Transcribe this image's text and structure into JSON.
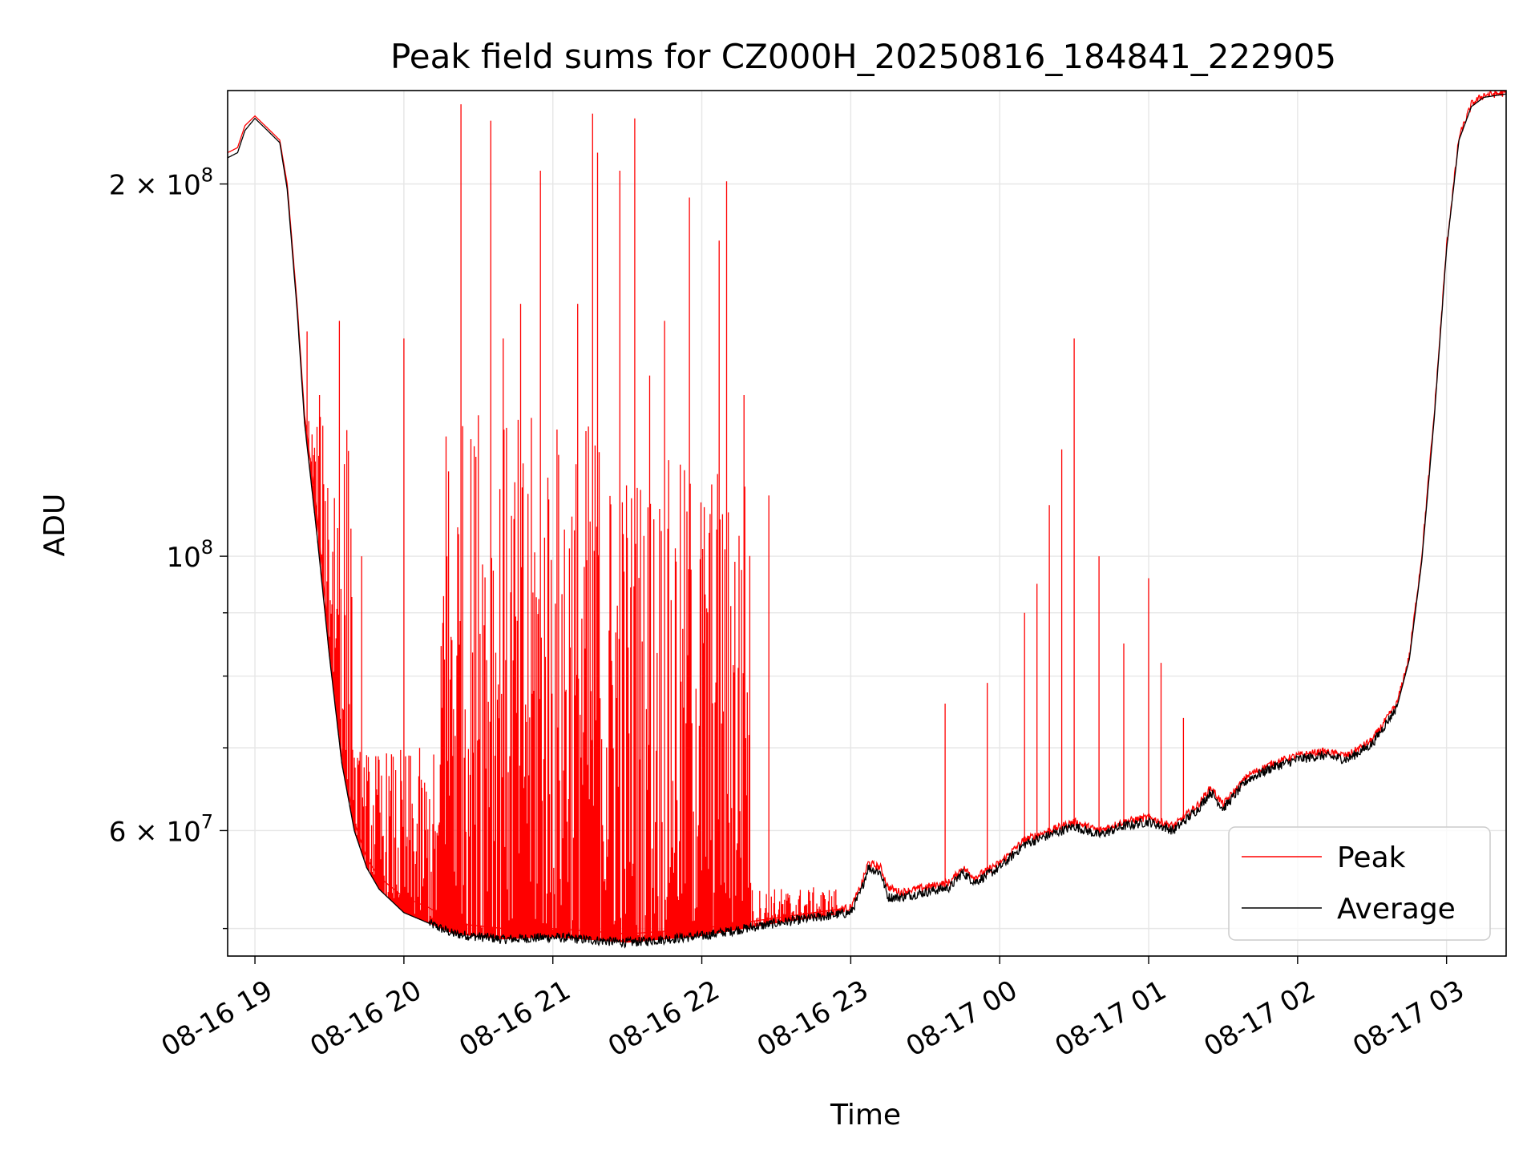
{
  "chart_data": {
    "type": "line",
    "title": "Peak field sums for CZ000H_20250816_184841_222905",
    "xlabel": "Time",
    "ylabel": "ADU",
    "xlim": [
      "2025-08-16 18:49",
      "2025-08-17 03:24"
    ],
    "ylim": [
      47500000,
      238000000
    ],
    "yscale": "log",
    "grid": true,
    "legend_position": "lower-right",
    "x_tick_labels": [
      "08-16 19",
      "08-16 20",
      "08-16 21",
      "08-16 22",
      "08-16 23",
      "08-17 00",
      "08-17 01",
      "08-17 02",
      "08-17 03"
    ],
    "x_tick_values": [
      "2025-08-16 19:00",
      "2025-08-16 20:00",
      "2025-08-16 21:00",
      "2025-08-16 22:00",
      "2025-08-16 23:00",
      "2025-08-17 00:00",
      "2025-08-17 01:00",
      "2025-08-17 02:00",
      "2025-08-17 03:00"
    ],
    "y_tick_labels": [
      {
        "value": 60000000,
        "mantissa": "6",
        "exp": "7"
      },
      {
        "value": 100000000,
        "mantissa": "",
        "exp": "8"
      },
      {
        "value": 200000000,
        "mantissa": "2",
        "exp": "8"
      }
    ],
    "y_minor_ticks": [
      50000000,
      70000000,
      80000000,
      90000000
    ],
    "series": [
      {
        "name": "Peak",
        "color": "#ff0000",
        "baseline": [
          [
            "2025-08-16 18:49",
            212000000
          ],
          [
            "2025-08-16 18:53",
            214000000
          ],
          [
            "2025-08-16 18:56",
            223000000
          ],
          [
            "2025-08-16 19:00",
            227000000
          ],
          [
            "2025-08-16 19:05",
            222000000
          ],
          [
            "2025-08-16 19:10",
            217000000
          ],
          [
            "2025-08-16 19:13",
            200000000
          ],
          [
            "2025-08-16 19:17",
            160000000
          ],
          [
            "2025-08-16 19:20",
            130000000
          ],
          [
            "2025-08-16 19:25",
            108000000
          ],
          [
            "2025-08-16 19:30",
            85000000
          ],
          [
            "2025-08-16 19:35",
            69000000
          ],
          [
            "2025-08-16 19:40",
            61000000
          ],
          [
            "2025-08-16 19:45",
            57000000
          ],
          [
            "2025-08-16 19:50",
            55000000
          ],
          [
            "2025-08-16 19:55",
            54000000
          ],
          [
            "2025-08-16 20:00",
            53000000
          ],
          [
            "2025-08-16 20:10",
            52000000
          ],
          [
            "2025-08-16 20:20",
            50500000
          ],
          [
            "2025-08-16 20:40",
            50000000
          ],
          [
            "2025-08-16 21:00",
            50000000
          ],
          [
            "2025-08-16 21:30",
            49500000
          ],
          [
            "2025-08-16 22:00",
            50000000
          ],
          [
            "2025-08-16 22:30",
            51000000
          ],
          [
            "2025-08-16 23:00",
            52000000
          ],
          [
            "2025-08-16 23:04",
            54000000
          ],
          [
            "2025-08-16 23:07",
            56500000
          ],
          [
            "2025-08-16 23:12",
            56000000
          ],
          [
            "2025-08-16 23:15",
            54000000
          ],
          [
            "2025-08-16 23:20",
            53500000
          ],
          [
            "2025-08-16 23:40",
            54500000
          ],
          [
            "2025-08-16 23:45",
            56000000
          ],
          [
            "2025-08-16 23:50",
            55000000
          ],
          [
            "2025-08-17 00:00",
            56500000
          ],
          [
            "2025-08-17 00:10",
            59000000
          ],
          [
            "2025-08-17 00:20",
            60000000
          ],
          [
            "2025-08-17 00:30",
            61000000
          ],
          [
            "2025-08-17 00:40",
            60000000
          ],
          [
            "2025-08-17 00:50",
            61000000
          ],
          [
            "2025-08-17 01:00",
            61500000
          ],
          [
            "2025-08-17 01:10",
            60500000
          ],
          [
            "2025-08-17 01:20",
            63000000
          ],
          [
            "2025-08-17 01:25",
            65000000
          ],
          [
            "2025-08-17 01:30",
            63000000
          ],
          [
            "2025-08-17 01:40",
            66500000
          ],
          [
            "2025-08-17 01:50",
            68000000
          ],
          [
            "2025-08-17 02:00",
            69000000
          ],
          [
            "2025-08-17 02:10",
            69500000
          ],
          [
            "2025-08-17 02:20",
            69000000
          ],
          [
            "2025-08-17 02:30",
            71000000
          ],
          [
            "2025-08-17 02:40",
            76000000
          ],
          [
            "2025-08-17 02:45",
            83000000
          ],
          [
            "2025-08-17 02:50",
            100000000
          ],
          [
            "2025-08-17 02:55",
            130000000
          ],
          [
            "2025-08-17 03:00",
            178000000
          ],
          [
            "2025-08-17 03:05",
            218000000
          ],
          [
            "2025-08-17 03:10",
            232000000
          ],
          [
            "2025-08-17 03:15",
            236000000
          ],
          [
            "2025-08-17 03:24",
            237000000
          ]
        ],
        "spike_bands": [
          {
            "start": "2025-08-16 19:20",
            "end": "2025-08-16 19:40",
            "peak_level": 130000000
          },
          {
            "start": "2025-08-16 19:40",
            "end": "2025-08-16 20:15",
            "peak_level": 70000000
          },
          {
            "start": "2025-08-16 20:15",
            "end": "2025-08-16 21:20",
            "peak_level": 130000000
          },
          {
            "start": "2025-08-16 21:20",
            "end": "2025-08-16 22:20",
            "peak_level": 120000000
          },
          {
            "start": "2025-08-16 22:20",
            "end": "2025-08-16 22:55",
            "peak_level": 54000000
          }
        ],
        "tall_spikes": [
          [
            "2025-08-16 19:21",
            152000000
          ],
          [
            "2025-08-16 19:26",
            135000000
          ],
          [
            "2025-08-16 19:34",
            155000000
          ],
          [
            "2025-08-16 19:43",
            100000000
          ],
          [
            "2025-08-16 20:00",
            150000000
          ],
          [
            "2025-08-16 20:17",
            125000000
          ],
          [
            "2025-08-16 20:23",
            232000000
          ],
          [
            "2025-08-16 20:30",
            130000000
          ],
          [
            "2025-08-16 20:35",
            225000000
          ],
          [
            "2025-08-16 20:40",
            150000000
          ],
          [
            "2025-08-16 20:47",
            160000000
          ],
          [
            "2025-08-16 20:55",
            205000000
          ],
          [
            "2025-08-16 21:10",
            160000000
          ],
          [
            "2025-08-16 21:16",
            228000000
          ],
          [
            "2025-08-16 21:18",
            212000000
          ],
          [
            "2025-08-16 21:27",
            205000000
          ],
          [
            "2025-08-16 21:33",
            226000000
          ],
          [
            "2025-08-16 21:39",
            140000000
          ],
          [
            "2025-08-16 21:45",
            155000000
          ],
          [
            "2025-08-16 21:55",
            195000000
          ],
          [
            "2025-08-16 22:07",
            180000000
          ],
          [
            "2025-08-16 22:10",
            201000000
          ],
          [
            "2025-08-16 22:17",
            135000000
          ],
          [
            "2025-08-16 22:27",
            112000000
          ],
          [
            "2025-08-16 23:38",
            76000000
          ],
          [
            "2025-08-16 23:55",
            79000000
          ],
          [
            "2025-08-17 00:10",
            90000000
          ],
          [
            "2025-08-17 00:15",
            95000000
          ],
          [
            "2025-08-17 00:20",
            110000000
          ],
          [
            "2025-08-17 00:25",
            122000000
          ],
          [
            "2025-08-17 00:30",
            150000000
          ],
          [
            "2025-08-17 00:40",
            100000000
          ],
          [
            "2025-08-17 00:50",
            85000000
          ],
          [
            "2025-08-17 01:00",
            96000000
          ],
          [
            "2025-08-17 01:05",
            82000000
          ],
          [
            "2025-08-17 01:14",
            74000000
          ]
        ]
      },
      {
        "name": "Average",
        "color": "#000000",
        "baseline": [
          [
            "2025-08-16 18:49",
            210000000
          ],
          [
            "2025-08-16 18:53",
            212000000
          ],
          [
            "2025-08-16 18:56",
            221000000
          ],
          [
            "2025-08-16 19:00",
            226000000
          ],
          [
            "2025-08-16 19:05",
            221000000
          ],
          [
            "2025-08-16 19:10",
            216000000
          ],
          [
            "2025-08-16 19:13",
            198000000
          ],
          [
            "2025-08-16 19:17",
            158000000
          ],
          [
            "2025-08-16 19:20",
            128000000
          ],
          [
            "2025-08-16 19:25",
            104000000
          ],
          [
            "2025-08-16 19:30",
            83000000
          ],
          [
            "2025-08-16 19:35",
            68000000
          ],
          [
            "2025-08-16 19:40",
            60000000
          ],
          [
            "2025-08-16 19:45",
            56000000
          ],
          [
            "2025-08-16 19:50",
            53800000
          ],
          [
            "2025-08-16 20:00",
            51500000
          ],
          [
            "2025-08-16 20:10",
            50500000
          ],
          [
            "2025-08-16 20:20",
            49500000
          ],
          [
            "2025-08-16 20:40",
            49000000
          ],
          [
            "2025-08-16 21:00",
            49200000
          ],
          [
            "2025-08-16 21:30",
            48700000
          ],
          [
            "2025-08-16 22:00",
            49300000
          ],
          [
            "2025-08-16 22:30",
            50500000
          ],
          [
            "2025-08-16 23:00",
            51500000
          ],
          [
            "2025-08-16 23:04",
            53500000
          ],
          [
            "2025-08-16 23:07",
            56000000
          ],
          [
            "2025-08-16 23:12",
            55500000
          ],
          [
            "2025-08-16 23:15",
            53000000
          ],
          [
            "2025-08-16 23:20",
            53000000
          ],
          [
            "2025-08-16 23:40",
            54000000
          ],
          [
            "2025-08-16 23:45",
            55500000
          ],
          [
            "2025-08-16 23:50",
            54500000
          ],
          [
            "2025-08-17 00:00",
            56000000
          ],
          [
            "2025-08-17 00:10",
            58500000
          ],
          [
            "2025-08-17 00:20",
            59500000
          ],
          [
            "2025-08-17 00:30",
            60500000
          ],
          [
            "2025-08-17 00:40",
            59500000
          ],
          [
            "2025-08-17 00:50",
            60500000
          ],
          [
            "2025-08-17 01:00",
            61000000
          ],
          [
            "2025-08-17 01:10",
            60000000
          ],
          [
            "2025-08-17 01:20",
            62500000
          ],
          [
            "2025-08-17 01:25",
            64500000
          ],
          [
            "2025-08-17 01:30",
            62500000
          ],
          [
            "2025-08-17 01:40",
            66000000
          ],
          [
            "2025-08-17 01:50",
            67500000
          ],
          [
            "2025-08-17 02:00",
            68500000
          ],
          [
            "2025-08-17 02:10",
            69000000
          ],
          [
            "2025-08-17 02:20",
            68500000
          ],
          [
            "2025-08-17 02:30",
            70500000
          ],
          [
            "2025-08-17 02:40",
            75500000
          ],
          [
            "2025-08-17 02:45",
            82500000
          ],
          [
            "2025-08-17 02:50",
            99000000
          ],
          [
            "2025-08-17 02:55",
            129000000
          ],
          [
            "2025-08-17 03:00",
            177000000
          ],
          [
            "2025-08-17 03:05",
            217000000
          ],
          [
            "2025-08-17 03:10",
            231000000
          ],
          [
            "2025-08-17 03:15",
            235000000
          ],
          [
            "2025-08-17 03:24",
            236500000
          ]
        ]
      }
    ]
  }
}
